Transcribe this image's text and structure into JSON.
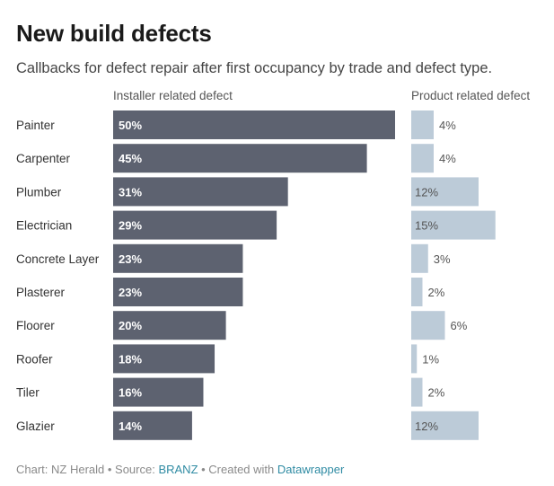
{
  "title": "New build defects",
  "subtitle": "Callbacks for defect repair after first occupancy by trade and defect type.",
  "footer": {
    "chart_text": "Chart: NZ Herald",
    "sep1": " • Source: ",
    "source_link": "BRANZ",
    "sep2": " • Created with ",
    "tool_link": "Datawrapper"
  },
  "colors": {
    "installer": "#5d6270",
    "product": "#bccbd8"
  },
  "chart_data": {
    "type": "bar",
    "orientation": "horizontal",
    "categories": [
      "Painter",
      "Carpenter",
      "Plumber",
      "Electrician",
      "Concrete Layer",
      "Plasterer",
      "Floorer",
      "Roofer",
      "Tiler",
      "Glazier"
    ],
    "series": [
      {
        "name": "Installer related defect",
        "values": [
          50,
          45,
          31,
          29,
          23,
          23,
          20,
          18,
          16,
          14
        ],
        "labels": [
          "50%",
          "45%",
          "31%",
          "29%",
          "23%",
          "23%",
          "20%",
          "18%",
          "16%",
          "14%"
        ]
      },
      {
        "name": "Product related defect",
        "values": [
          4,
          4,
          12,
          15,
          3,
          2,
          6,
          1,
          2,
          12
        ],
        "labels": [
          "4%",
          "4%",
          "12%",
          "15%",
          "3%",
          "2%",
          "6%",
          "1%",
          "2%",
          "12%"
        ]
      }
    ],
    "unit": "%"
  }
}
